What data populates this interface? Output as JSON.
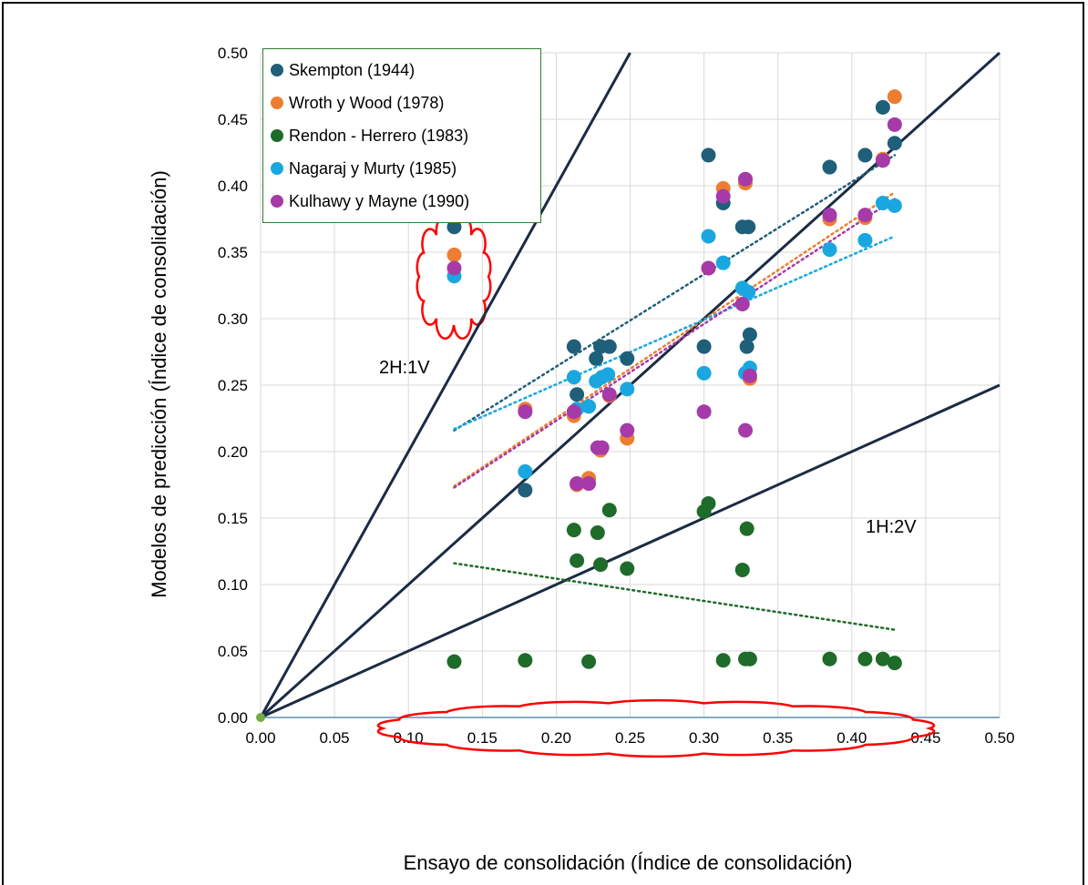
{
  "chart_data": {
    "type": "scatter",
    "xlabel": "Ensayo de consolidación (Índice de consolidación)",
    "ylabel": "Modelos de predicción (Índice de consolidación)",
    "xlim": [
      0,
      0.5
    ],
    "ylim": [
      0,
      0.5
    ],
    "xticks": [
      "0.00",
      "0.05",
      "0.10",
      "0.15",
      "0.20",
      "0.25",
      "0.30",
      "0.35",
      "0.40",
      "0.45",
      "0.50"
    ],
    "yticks": [
      "0.00",
      "0.05",
      "0.10",
      "0.15",
      "0.20",
      "0.25",
      "0.30",
      "0.35",
      "0.40",
      "0.45",
      "0.50"
    ],
    "grid": true,
    "legend_position": "top-left",
    "series": [
      {
        "name": "Skempton (1944)",
        "color": "#1f5f7a",
        "points": [
          [
            0.131,
            0.369
          ],
          [
            0.179,
            0.171
          ],
          [
            0.212,
            0.279
          ],
          [
            0.214,
            0.243
          ],
          [
            0.227,
            0.27
          ],
          [
            0.23,
            0.279
          ],
          [
            0.236,
            0.279
          ],
          [
            0.248,
            0.27
          ],
          [
            0.3,
            0.279
          ],
          [
            0.303,
            0.423
          ],
          [
            0.313,
            0.387
          ],
          [
            0.326,
            0.369
          ],
          [
            0.329,
            0.279
          ],
          [
            0.33,
            0.369
          ],
          [
            0.331,
            0.288
          ],
          [
            0.385,
            0.414
          ],
          [
            0.409,
            0.423
          ],
          [
            0.421,
            0.459
          ],
          [
            0.429,
            0.432
          ]
        ]
      },
      {
        "name": "Wroth y Wood (1978)",
        "color": "#ed7d31",
        "points": [
          [
            0.131,
            0.348
          ],
          [
            0.179,
            0.232
          ],
          [
            0.212,
            0.227
          ],
          [
            0.214,
            0.175
          ],
          [
            0.222,
            0.18
          ],
          [
            0.23,
            0.201
          ],
          [
            0.236,
            0.242
          ],
          [
            0.248,
            0.21
          ],
          [
            0.303,
            0.338
          ],
          [
            0.313,
            0.398
          ],
          [
            0.328,
            0.402
          ],
          [
            0.331,
            0.255
          ],
          [
            0.385,
            0.375
          ],
          [
            0.409,
            0.376
          ],
          [
            0.421,
            0.42
          ],
          [
            0.429,
            0.467
          ]
        ]
      },
      {
        "name": "Rendon - Herrero (1983)",
        "color": "#1e6b2a",
        "points": [
          [
            0.131,
            0.042
          ],
          [
            0.179,
            0.043
          ],
          [
            0.212,
            0.141
          ],
          [
            0.214,
            0.118
          ],
          [
            0.222,
            0.042
          ],
          [
            0.228,
            0.139
          ],
          [
            0.23,
            0.115
          ],
          [
            0.236,
            0.156
          ],
          [
            0.248,
            0.112
          ],
          [
            0.3,
            0.155
          ],
          [
            0.303,
            0.161
          ],
          [
            0.313,
            0.043
          ],
          [
            0.326,
            0.111
          ],
          [
            0.328,
            0.044
          ],
          [
            0.329,
            0.142
          ],
          [
            0.331,
            0.044
          ],
          [
            0.385,
            0.044
          ],
          [
            0.409,
            0.044
          ],
          [
            0.421,
            0.044
          ],
          [
            0.429,
            0.041
          ]
        ]
      },
      {
        "name": "Nagaraj y Murty (1985)",
        "color": "#1aa7e0",
        "points": [
          [
            0.131,
            0.332
          ],
          [
            0.179,
            0.185
          ],
          [
            0.212,
            0.256
          ],
          [
            0.214,
            0.232
          ],
          [
            0.222,
            0.234
          ],
          [
            0.227,
            0.253
          ],
          [
            0.231,
            0.256
          ],
          [
            0.235,
            0.258
          ],
          [
            0.248,
            0.247
          ],
          [
            0.3,
            0.259
          ],
          [
            0.303,
            0.362
          ],
          [
            0.313,
            0.342
          ],
          [
            0.326,
            0.323
          ],
          [
            0.328,
            0.259
          ],
          [
            0.33,
            0.32
          ],
          [
            0.331,
            0.263
          ],
          [
            0.385,
            0.352
          ],
          [
            0.409,
            0.359
          ],
          [
            0.421,
            0.387
          ],
          [
            0.429,
            0.385
          ]
        ]
      },
      {
        "name": "Kulhawy y Mayne (1990)",
        "color": "#a53aa8",
        "points": [
          [
            0.131,
            0.338
          ],
          [
            0.179,
            0.23
          ],
          [
            0.212,
            0.23
          ],
          [
            0.214,
            0.176
          ],
          [
            0.222,
            0.176
          ],
          [
            0.228,
            0.203
          ],
          [
            0.231,
            0.203
          ],
          [
            0.236,
            0.243
          ],
          [
            0.248,
            0.216
          ],
          [
            0.3,
            0.23
          ],
          [
            0.303,
            0.338
          ],
          [
            0.313,
            0.392
          ],
          [
            0.326,
            0.311
          ],
          [
            0.328,
            0.405
          ],
          [
            0.328,
            0.216
          ],
          [
            0.331,
            0.257
          ],
          [
            0.385,
            0.378
          ],
          [
            0.409,
            0.378
          ],
          [
            0.421,
            0.419
          ],
          [
            0.429,
            0.446
          ]
        ]
      }
    ],
    "trendlines": [
      {
        "color": "#1f5f7a",
        "x": [
          0.131,
          0.429
        ],
        "y": [
          0.216,
          0.423
        ]
      },
      {
        "color": "#ed7d31",
        "x": [
          0.131,
          0.429
        ],
        "y": [
          0.174,
          0.395
        ]
      },
      {
        "color": "#1e6b2a",
        "x": [
          0.131,
          0.429
        ],
        "y": [
          0.116,
          0.066
        ]
      },
      {
        "color": "#1aa7e0",
        "x": [
          0.131,
          0.429
        ],
        "y": [
          0.217,
          0.362
        ]
      },
      {
        "color": "#a53aa8",
        "x": [
          0.131,
          0.429
        ],
        "y": [
          0.173,
          0.39
        ]
      }
    ],
    "reference_lines": [
      {
        "label": "2H:1V",
        "slope": 2
      },
      {
        "label": "",
        "slope": 1
      },
      {
        "label": "1H:2V",
        "slope": 0.5
      }
    ],
    "annotations": [
      "2H:1V",
      "1H:2V"
    ]
  }
}
